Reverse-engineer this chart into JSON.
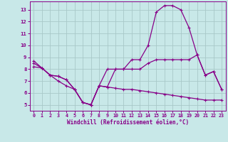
{
  "xlabel": "Windchill (Refroidissement éolien,°C)",
  "xlim": [
    -0.5,
    23.5
  ],
  "ylim": [
    4.5,
    13.7
  ],
  "yticks": [
    5,
    6,
    7,
    8,
    9,
    10,
    11,
    12,
    13
  ],
  "xticks": [
    0,
    1,
    2,
    3,
    4,
    5,
    6,
    7,
    8,
    9,
    10,
    11,
    12,
    13,
    14,
    15,
    16,
    17,
    18,
    19,
    20,
    21,
    22,
    23
  ],
  "background_color": "#c8e8e8",
  "grid_color": "#a8c8c8",
  "line_color": "#880088",
  "series": [
    {
      "x": [
        0,
        1,
        2,
        3,
        4,
        5,
        6,
        7,
        8,
        9,
        10,
        11,
        12,
        13,
        14,
        15,
        16,
        17,
        18,
        19,
        20,
        21,
        22,
        23
      ],
      "y": [
        8.7,
        8.1,
        7.5,
        7.4,
        7.1,
        6.3,
        5.2,
        5.0,
        6.6,
        6.5,
        8.0,
        8.0,
        8.8,
        8.8,
        10.0,
        12.8,
        13.35,
        13.35,
        13.0,
        11.5,
        9.2,
        7.5,
        7.8,
        6.3
      ]
    },
    {
      "x": [
        0,
        1,
        2,
        3,
        4,
        5,
        6,
        7,
        8,
        9,
        10,
        11,
        12,
        13,
        14,
        15,
        16,
        17,
        18,
        19,
        20,
        21,
        22,
        23
      ],
      "y": [
        8.5,
        8.1,
        7.5,
        7.4,
        7.1,
        6.3,
        5.2,
        5.0,
        6.6,
        8.0,
        8.0,
        8.0,
        8.0,
        8.0,
        8.5,
        8.8,
        8.8,
        8.8,
        8.8,
        8.8,
        9.2,
        7.5,
        7.8,
        6.3
      ]
    },
    {
      "x": [
        0,
        1,
        2,
        3,
        4,
        5,
        6,
        7,
        8,
        9,
        10,
        11,
        12,
        13,
        14,
        15,
        16,
        17,
        18,
        19,
        20,
        21,
        22,
        23
      ],
      "y": [
        8.2,
        8.1,
        7.5,
        7.0,
        6.6,
        6.3,
        5.2,
        5.0,
        6.6,
        6.5,
        6.4,
        6.3,
        6.3,
        6.2,
        6.1,
        6.0,
        5.9,
        5.8,
        5.7,
        5.6,
        5.5,
        5.4,
        5.4,
        5.4
      ]
    }
  ]
}
